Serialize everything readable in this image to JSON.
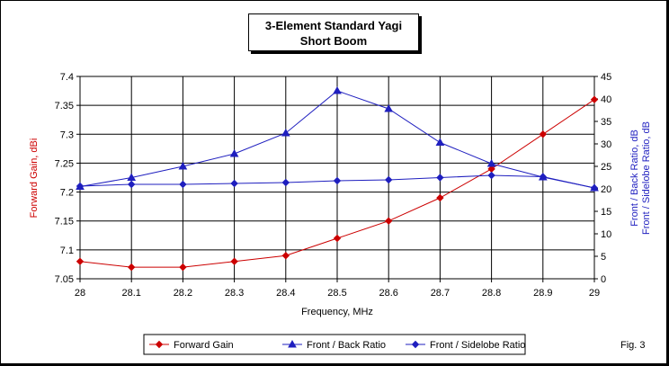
{
  "chart_data": {
    "type": "line",
    "title": "3-Element Standard Yagi",
    "subtitle": "Short Boom",
    "xlabel": "Frequency, MHz",
    "ylabel_left": "Forward Gain, dBi",
    "ylabel_right_line1": "Front / Back Ratio,  dB",
    "ylabel_right_line2": "Front / Sidelobe Ratio,  dB",
    "x": [
      28,
      28.1,
      28.2,
      28.3,
      28.4,
      28.5,
      28.6,
      28.7,
      28.8,
      28.9,
      29
    ],
    "x_ticks": [
      "28",
      "28.1",
      "28.2",
      "28.3",
      "28.4",
      "28.5",
      "28.6",
      "28.7",
      "28.8",
      "28.9",
      "29"
    ],
    "ylim_left": [
      7.05,
      7.4
    ],
    "y_left_ticks": [
      "7.05",
      "7.1",
      "7.15",
      "7.2",
      "7.25",
      "7.3",
      "7.35",
      "7.4"
    ],
    "ylim_right": [
      0,
      45
    ],
    "y_right_ticks": [
      "0",
      "5",
      "10",
      "15",
      "20",
      "25",
      "30",
      "35",
      "40",
      "45"
    ],
    "grid": true,
    "legend_position": "bottom",
    "series": [
      {
        "name": "Forward Gain",
        "axis": "left",
        "color": "#cc0000",
        "marker": "diamond",
        "values": [
          7.08,
          7.07,
          7.07,
          7.08,
          7.09,
          7.12,
          7.15,
          7.19,
          7.24,
          7.3,
          7.36
        ]
      },
      {
        "name": "Front / Back Ratio",
        "axis": "right",
        "color": "#1f1fbf",
        "marker": "triangle",
        "values": [
          20.5,
          22.5,
          25.0,
          27.8,
          32.4,
          41.8,
          37.8,
          30.3,
          25.6,
          22.6,
          20.2
        ]
      },
      {
        "name": "Front / Sidelobe Ratio",
        "axis": "right",
        "color": "#1f1fbf",
        "marker": "diamond",
        "values": [
          20.6,
          21.0,
          21.0,
          21.2,
          21.4,
          21.8,
          22.0,
          22.5,
          23.0,
          22.7,
          20.2
        ]
      }
    ]
  },
  "fig_label": "Fig. 3"
}
